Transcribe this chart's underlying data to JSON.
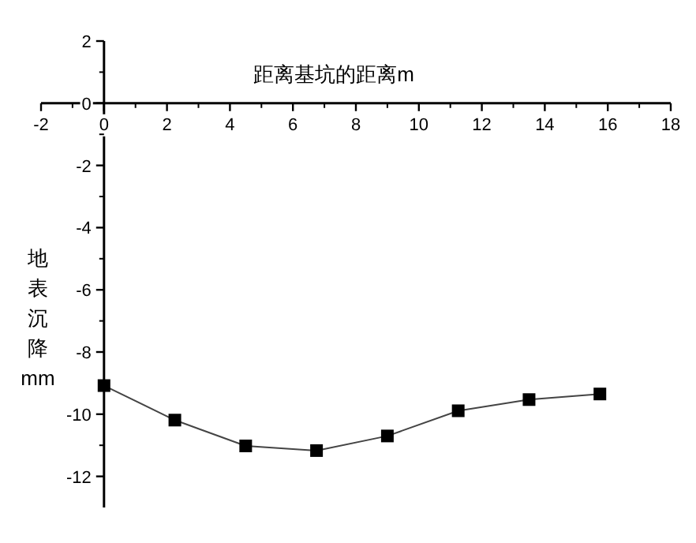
{
  "chart_data": {
    "type": "line",
    "xlabel": "距离基坑的距离m",
    "ylabel": "地表沉降mm",
    "x": [
      0,
      2.25,
      4.5,
      6.75,
      9,
      11.25,
      13.5,
      15.75
    ],
    "series": [
      {
        "color": "#000000",
        "values": [
          -9.08,
          -10.19,
          -11.02,
          -11.17,
          -10.7,
          -9.89,
          -9.53,
          -9.35
        ]
      }
    ],
    "xlim": [
      -2,
      18
    ],
    "ylim": [
      -13,
      2
    ],
    "xticks": [
      -2,
      0,
      2,
      4,
      6,
      8,
      10,
      12,
      14,
      16,
      18
    ],
    "yticks": [
      -12,
      -10,
      -8,
      -6,
      -4,
      -2,
      0,
      2
    ],
    "marker": "square",
    "line_style": "solid",
    "grid": false
  }
}
